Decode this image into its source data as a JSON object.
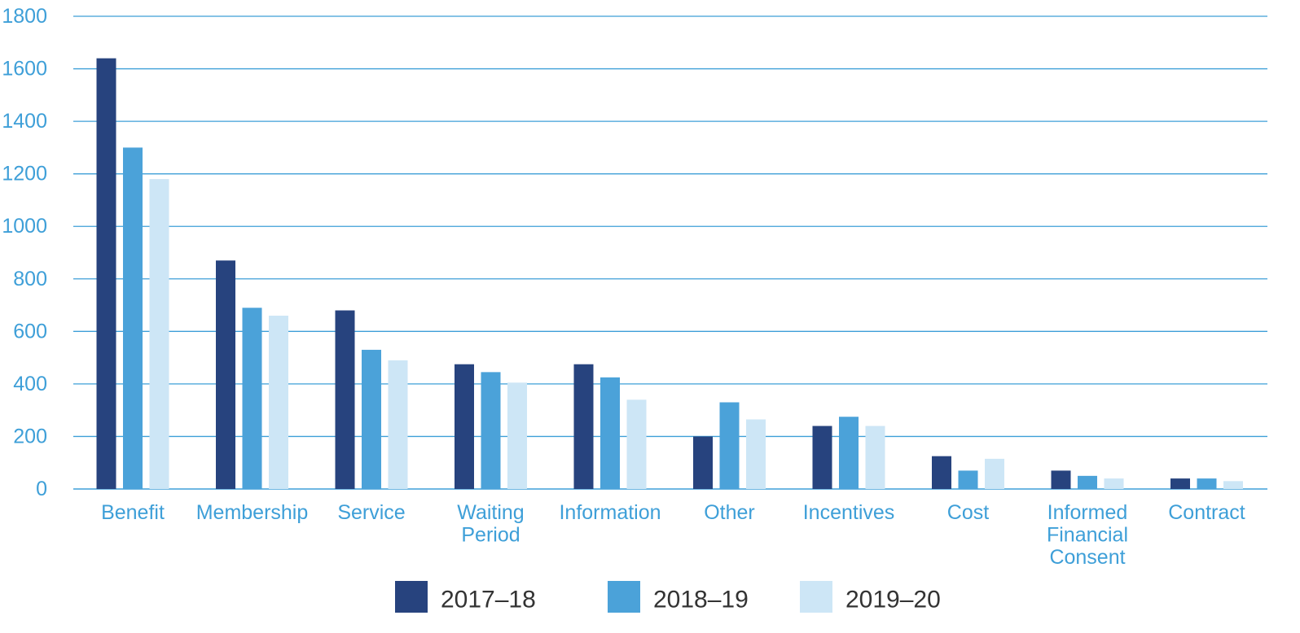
{
  "colors": {
    "axis_text": "#3e9fd8",
    "grid": "#3e9fd8",
    "legend_text": "#333333",
    "background": "#ffffff"
  },
  "chart_data": {
    "type": "bar",
    "categories": [
      "Benefit",
      "Membership",
      "Service",
      "Waiting Period",
      "Information",
      "Other",
      "Incentives",
      "Cost",
      "Informed Financial Consent",
      "Contract"
    ],
    "category_label_lines": [
      [
        "Benefit"
      ],
      [
        "Membership"
      ],
      [
        "Service"
      ],
      [
        "Waiting",
        "Period"
      ],
      [
        "Information"
      ],
      [
        "Other"
      ],
      [
        "Incentives"
      ],
      [
        "Cost"
      ],
      [
        "Informed",
        "Financial",
        "Consent"
      ],
      [
        "Contract"
      ]
    ],
    "series": [
      {
        "name": "2017–18",
        "color": "#27437e",
        "values": [
          1640,
          870,
          680,
          475,
          475,
          200,
          240,
          125,
          70,
          40
        ]
      },
      {
        "name": "2018–19",
        "color": "#4ba2d9",
        "values": [
          1300,
          690,
          530,
          445,
          425,
          330,
          275,
          70,
          50,
          40
        ]
      },
      {
        "name": "2019–20",
        "color": "#cde6f6",
        "values": [
          1180,
          660,
          490,
          405,
          340,
          265,
          240,
          115,
          40,
          30
        ]
      }
    ],
    "y_ticks": [
      "0",
      "200",
      "400",
      "600",
      "800",
      "1000",
      "1200",
      "1400",
      "1600",
      "1800"
    ],
    "ylim": [
      0,
      1800
    ],
    "title": "",
    "xlabel": "",
    "ylabel": "",
    "grid": true,
    "legend_position": "bottom-center"
  }
}
